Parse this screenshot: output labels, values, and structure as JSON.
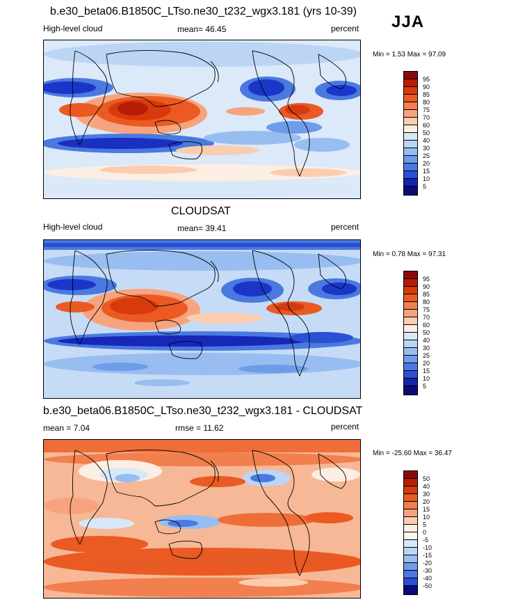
{
  "season": "JJA",
  "chart_data": [
    {
      "type": "heatmap",
      "title": "b.e30_beta06.B1850C_LTso.ne30_t232_wgx3.181 (yrs 10-39)",
      "left_label": "High-level cloud",
      "center_label": "mean=  46.45",
      "right_label": "percent",
      "minmax_label": "Min =   1.53 Max =  97.09",
      "mean": 46.45,
      "min": 1.53,
      "max": 97.09,
      "colorbar": {
        "levels": [
          "95",
          "90",
          "85",
          "80",
          "75",
          "70",
          "60",
          "50",
          "40",
          "30",
          "25",
          "20",
          "15",
          "10",
          "5"
        ],
        "colors": [
          "#8a0a0a",
          "#b81c06",
          "#d93a0c",
          "#ea5a22",
          "#f27f4e",
          "#f7a47e",
          "#fbcdb0",
          "#fdeee4",
          "#d8e8f8",
          "#bcd5f5",
          "#98bdf0",
          "#6f9ce8",
          "#4a79e0",
          "#2a50d4",
          "#1622b0",
          "#0a0a7a"
        ]
      },
      "map_colors": {
        "background": "#dbe9f9"
      },
      "features": [
        {
          "name": "indian-monsoon-high",
          "value": 90,
          "color": "#c4280a"
        },
        {
          "name": "maritime-continent-high",
          "value": 85,
          "color": "#d93a0c"
        },
        {
          "name": "central-america-high",
          "value": 85,
          "color": "#d43a10"
        },
        {
          "name": "south-subtropical-low",
          "value": 5,
          "color": "#1a30c0"
        },
        {
          "name": "north-pacific-low",
          "value": 10,
          "color": "#1a36c8"
        },
        {
          "name": "north-atlantic-low",
          "value": 10,
          "color": "#1a36c8"
        }
      ]
    },
    {
      "type": "heatmap",
      "title": "CLOUDSAT",
      "left_label": "High-level cloud",
      "center_label": "mean=  39.41",
      "right_label": "percent",
      "minmax_label": "Min =   0.78 Max =  97.31",
      "mean": 39.41,
      "min": 0.78,
      "max": 97.31,
      "colorbar": {
        "levels": [
          "95",
          "90",
          "85",
          "80",
          "75",
          "70",
          "60",
          "50",
          "40",
          "30",
          "25",
          "20",
          "15",
          "10",
          "5"
        ],
        "colors": [
          "#8a0a0a",
          "#b81c06",
          "#d93a0c",
          "#ea5a22",
          "#f27f4e",
          "#f7a47e",
          "#fbcdb0",
          "#fdeee4",
          "#d8e8f8",
          "#bcd5f5",
          "#98bdf0",
          "#6f9ce8",
          "#4a79e0",
          "#2a50d4",
          "#1622b0",
          "#0a0a7a"
        ]
      },
      "map_colors": {
        "background": "#c6dbf6"
      },
      "features": [
        {
          "name": "indian-monsoon-high",
          "value": 85,
          "color": "#d93a0c"
        },
        {
          "name": "maritime-continent-high",
          "value": 80,
          "color": "#e05020"
        },
        {
          "name": "central-america-high",
          "value": 85,
          "color": "#d43a10"
        },
        {
          "name": "south-subtropical-low",
          "value": 5,
          "color": "#1628b8"
        },
        {
          "name": "north-pacific-low",
          "value": 10,
          "color": "#1a36c8"
        },
        {
          "name": "north-atlantic-low",
          "value": 10,
          "color": "#1a36c8"
        }
      ]
    },
    {
      "type": "heatmap",
      "title": "b.e30_beta06.B1850C_LTso.ne30_t232_wgx3.181 - CLOUDSAT",
      "left_label": "mean =   7.04",
      "center_label": "rmse =  11.62",
      "right_label": "percent",
      "minmax_label": "Min = -25.60 Max =  36.47",
      "mean": 7.04,
      "rmse": 11.62,
      "min": -25.6,
      "max": 36.47,
      "colorbar": {
        "levels": [
          "50",
          "40",
          "30",
          "20",
          "15",
          "10",
          "5",
          "0",
          "-5",
          "-10",
          "-15",
          "-20",
          "-30",
          "-40",
          "-50"
        ],
        "colors": [
          "#8a0a0a",
          "#b81c06",
          "#d93a0c",
          "#ea5a22",
          "#f27f4e",
          "#f7a47e",
          "#fbcdb0",
          "#fdeee4",
          "#fdf5ee",
          "#d8e8f8",
          "#bcd5f5",
          "#98bdf0",
          "#6f9ce8",
          "#4a79e0",
          "#2a50d4",
          "#0a0a7a"
        ]
      },
      "map_colors": {
        "background": "#f6b896"
      },
      "features": [
        {
          "name": "southern-ocean-positive",
          "value": 30,
          "color": "#e65a26"
        },
        {
          "name": "tropical-pacific-positive",
          "value": 20,
          "color": "#ee6d38"
        },
        {
          "name": "western-pacific-negative",
          "value": -15,
          "color": "#4a79e0"
        },
        {
          "name": "indian-ocean-negative",
          "value": -10,
          "color": "#98bdf0"
        }
      ]
    }
  ]
}
